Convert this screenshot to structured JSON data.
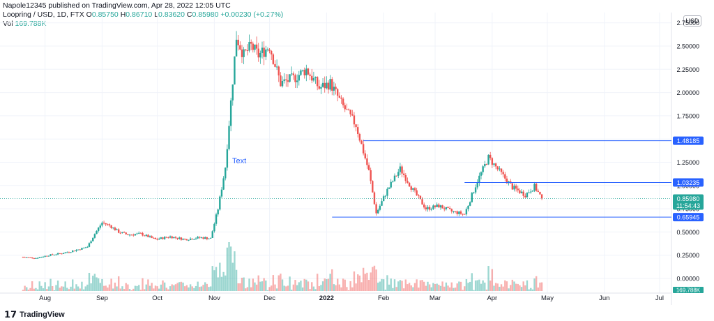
{
  "header": {
    "published": "Napole12345 published on TradingView.com, Apr 28, 2022 12:05 UTC",
    "symbol": "Loopring / USD, 1D, FTX",
    "o_label": "O",
    "o_value": "0.85750",
    "h_label": "H",
    "h_value": "0.86710",
    "l_label": "L",
    "l_value": "0.83620",
    "c_label": "C",
    "c_value": "0.85980",
    "change": "+0.00230 (+0.27%)",
    "vol_label": "Vol",
    "vol_value": "169.788K"
  },
  "currency": "USD",
  "annotation_text": "Text",
  "footer": {
    "brand": "TradingView"
  },
  "colors": {
    "up": "#26a69a",
    "down": "#ef5350",
    "line": "#2962ff",
    "grid": "#f0f3fa"
  },
  "chart_data": {
    "type": "candlestick",
    "x_ticks": [
      "Aug",
      "Sep",
      "Oct",
      "Nov",
      "Dec",
      "2022",
      "Feb",
      "Mar",
      "Apr",
      "May",
      "Jun",
      "Jul"
    ],
    "y_ticks": [
      "2.75000",
      "2.50000",
      "2.25000",
      "2.00000",
      "1.75000",
      "1.50000",
      "1.25000",
      "1.00000",
      "0.75000",
      "0.50000",
      "0.25000",
      "0.00000"
    ],
    "ylim": [
      -0.12,
      2.78
    ],
    "horizontal_levels": [
      {
        "value": 1.48185,
        "label": "1.48185"
      },
      {
        "value": 1.03235,
        "label": "1.03235"
      },
      {
        "value": 0.65945,
        "label": "0.65945"
      }
    ],
    "last_price": {
      "value": 0.8598,
      "label": "0.85980",
      "countdown": "11:54:43"
    },
    "volume_last": "169.788K",
    "close_path": [
      [
        "2021-07-20",
        0.23
      ],
      [
        "2021-07-27",
        0.22
      ],
      [
        "2021-08-03",
        0.25
      ],
      [
        "2021-08-10",
        0.27
      ],
      [
        "2021-08-17",
        0.3
      ],
      [
        "2021-08-24",
        0.34
      ],
      [
        "2021-08-28",
        0.48
      ],
      [
        "2021-09-01",
        0.6
      ],
      [
        "2021-09-05",
        0.57
      ],
      [
        "2021-09-10",
        0.5
      ],
      [
        "2021-09-15",
        0.47
      ],
      [
        "2021-09-22",
        0.48
      ],
      [
        "2021-09-30",
        0.42
      ],
      [
        "2021-10-08",
        0.45
      ],
      [
        "2021-10-16",
        0.42
      ],
      [
        "2021-10-24",
        0.44
      ],
      [
        "2021-10-30",
        0.43
      ],
      [
        "2021-11-03",
        0.75
      ],
      [
        "2021-11-07",
        1.2
      ],
      [
        "2021-11-10",
        1.9
      ],
      [
        "2021-11-13",
        2.6
      ],
      [
        "2021-11-17",
        2.4
      ],
      [
        "2021-11-21",
        2.5
      ],
      [
        "2021-11-25",
        2.4
      ],
      [
        "2021-12-01",
        2.5
      ],
      [
        "2021-12-07",
        2.1
      ],
      [
        "2021-12-14",
        2.15
      ],
      [
        "2021-12-21",
        2.25
      ],
      [
        "2021-12-28",
        2.05
      ],
      [
        "2022-01-03",
        2.1
      ],
      [
        "2022-01-10",
        1.85
      ],
      [
        "2022-01-17",
        1.65
      ],
      [
        "2022-01-24",
        1.15
      ],
      [
        "2022-01-28",
        0.7
      ],
      [
        "2022-02-03",
        0.95
      ],
      [
        "2022-02-10",
        1.18
      ],
      [
        "2022-02-17",
        0.95
      ],
      [
        "2022-02-24",
        0.75
      ],
      [
        "2022-03-03",
        0.78
      ],
      [
        "2022-03-10",
        0.72
      ],
      [
        "2022-03-17",
        0.69
      ],
      [
        "2022-03-24",
        1.05
      ],
      [
        "2022-03-30",
        1.3
      ],
      [
        "2022-04-05",
        1.15
      ],
      [
        "2022-04-12",
        0.98
      ],
      [
        "2022-04-19",
        0.9
      ],
      [
        "2022-04-24",
        0.99
      ],
      [
        "2022-04-28",
        0.86
      ]
    ]
  }
}
